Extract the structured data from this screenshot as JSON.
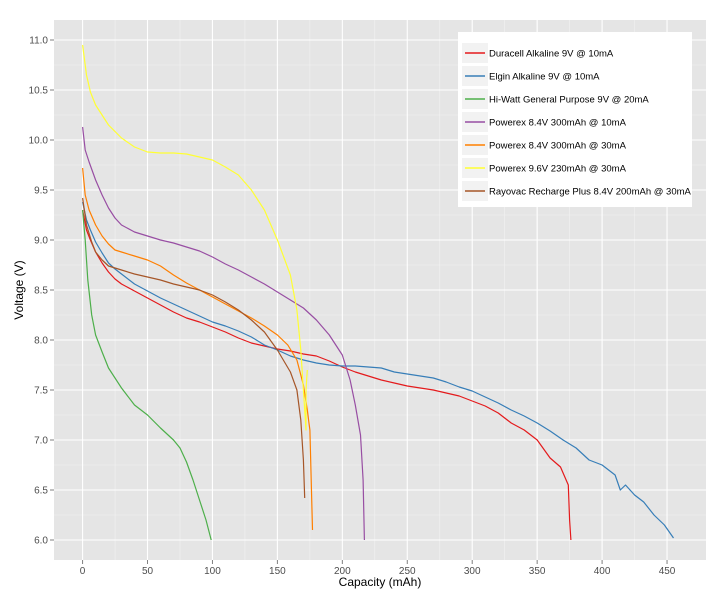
{
  "chart_data": {
    "type": "line",
    "title": "",
    "xlabel": "Capacity (mAh)",
    "ylabel": "Voltage (V)",
    "xlim": [
      -22,
      480
    ],
    "ylim": [
      5.8,
      11.2
    ],
    "xticks": [
      0,
      50,
      100,
      150,
      200,
      250,
      300,
      350,
      400,
      450
    ],
    "yticks": [
      6.0,
      6.5,
      7.0,
      7.5,
      8.0,
      8.5,
      9.0,
      9.5,
      10.0,
      10.5,
      11.0
    ],
    "ytick_labels": [
      "6.0",
      "6.5",
      "7.0",
      "7.5",
      "8.0",
      "8.5",
      "9.0",
      "9.5",
      "10.0",
      "10.5",
      "11.0"
    ],
    "grid": true,
    "legend_position": "top-right",
    "background": "#e5e5e5",
    "series": [
      {
        "name": "Duracell Alkaline 9V @ 10mA",
        "color": "#e41a1c",
        "points": [
          [
            0,
            9.3
          ],
          [
            3,
            9.1
          ],
          [
            6,
            9.0
          ],
          [
            10,
            8.88
          ],
          [
            15,
            8.77
          ],
          [
            20,
            8.68
          ],
          [
            25,
            8.61
          ],
          [
            30,
            8.56
          ],
          [
            40,
            8.49
          ],
          [
            50,
            8.42
          ],
          [
            60,
            8.35
          ],
          [
            70,
            8.28
          ],
          [
            80,
            8.22
          ],
          [
            90,
            8.18
          ],
          [
            100,
            8.13
          ],
          [
            110,
            8.08
          ],
          [
            120,
            8.02
          ],
          [
            130,
            7.97
          ],
          [
            140,
            7.94
          ],
          [
            150,
            7.91
          ],
          [
            160,
            7.89
          ],
          [
            170,
            7.86
          ],
          [
            180,
            7.84
          ],
          [
            190,
            7.79
          ],
          [
            200,
            7.73
          ],
          [
            210,
            7.68
          ],
          [
            220,
            7.64
          ],
          [
            230,
            7.6
          ],
          [
            240,
            7.57
          ],
          [
            250,
            7.54
          ],
          [
            260,
            7.52
          ],
          [
            270,
            7.5
          ],
          [
            280,
            7.47
          ],
          [
            290,
            7.44
          ],
          [
            300,
            7.39
          ],
          [
            310,
            7.34
          ],
          [
            320,
            7.27
          ],
          [
            330,
            7.17
          ],
          [
            340,
            7.1
          ],
          [
            350,
            7.0
          ],
          [
            360,
            6.82
          ],
          [
            368,
            6.73
          ],
          [
            374,
            6.55
          ],
          [
            375,
            6.2
          ],
          [
            376,
            6.0
          ]
        ]
      },
      {
        "name": "Elgin Alkaline 9V @ 10mA",
        "color": "#377eb8",
        "points": [
          [
            0,
            9.38
          ],
          [
            3,
            9.2
          ],
          [
            6,
            9.1
          ],
          [
            10,
            8.98
          ],
          [
            15,
            8.87
          ],
          [
            20,
            8.77
          ],
          [
            25,
            8.71
          ],
          [
            30,
            8.66
          ],
          [
            40,
            8.56
          ],
          [
            50,
            8.49
          ],
          [
            60,
            8.42
          ],
          [
            70,
            8.36
          ],
          [
            80,
            8.3
          ],
          [
            90,
            8.24
          ],
          [
            100,
            8.18
          ],
          [
            110,
            8.14
          ],
          [
            120,
            8.09
          ],
          [
            130,
            8.03
          ],
          [
            140,
            7.95
          ],
          [
            150,
            7.9
          ],
          [
            160,
            7.84
          ],
          [
            170,
            7.8
          ],
          [
            180,
            7.77
          ],
          [
            190,
            7.75
          ],
          [
            200,
            7.74
          ],
          [
            210,
            7.74
          ],
          [
            220,
            7.73
          ],
          [
            230,
            7.72
          ],
          [
            240,
            7.68
          ],
          [
            250,
            7.66
          ],
          [
            260,
            7.64
          ],
          [
            270,
            7.62
          ],
          [
            280,
            7.58
          ],
          [
            290,
            7.53
          ],
          [
            300,
            7.49
          ],
          [
            310,
            7.43
          ],
          [
            320,
            7.37
          ],
          [
            330,
            7.3
          ],
          [
            340,
            7.24
          ],
          [
            350,
            7.17
          ],
          [
            360,
            7.09
          ],
          [
            370,
            7.0
          ],
          [
            380,
            6.92
          ],
          [
            390,
            6.8
          ],
          [
            400,
            6.75
          ],
          [
            410,
            6.65
          ],
          [
            414,
            6.5
          ],
          [
            418,
            6.55
          ],
          [
            425,
            6.45
          ],
          [
            432,
            6.38
          ],
          [
            440,
            6.25
          ],
          [
            448,
            6.15
          ],
          [
            455,
            6.02
          ]
        ]
      },
      {
        "name": "Hi-Watt General Purpose 9V @ 20mA",
        "color": "#4daf4a",
        "points": [
          [
            0,
            9.3
          ],
          [
            2,
            9.0
          ],
          [
            4,
            8.6
          ],
          [
            7,
            8.25
          ],
          [
            10,
            8.05
          ],
          [
            15,
            7.88
          ],
          [
            20,
            7.72
          ],
          [
            30,
            7.52
          ],
          [
            40,
            7.35
          ],
          [
            50,
            7.25
          ],
          [
            60,
            7.12
          ],
          [
            70,
            7.0
          ],
          [
            75,
            6.92
          ],
          [
            80,
            6.78
          ],
          [
            85,
            6.6
          ],
          [
            90,
            6.4
          ],
          [
            95,
            6.2
          ],
          [
            99,
            6.0
          ]
        ]
      },
      {
        "name": "Powerex 8.4V 300mAh @ 10mA",
        "color": "#984ea3",
        "points": [
          [
            0,
            10.13
          ],
          [
            2,
            9.9
          ],
          [
            5,
            9.78
          ],
          [
            10,
            9.6
          ],
          [
            15,
            9.45
          ],
          [
            20,
            9.32
          ],
          [
            25,
            9.22
          ],
          [
            30,
            9.15
          ],
          [
            40,
            9.08
          ],
          [
            50,
            9.04
          ],
          [
            60,
            9.0
          ],
          [
            70,
            8.97
          ],
          [
            80,
            8.93
          ],
          [
            90,
            8.89
          ],
          [
            100,
            8.83
          ],
          [
            110,
            8.76
          ],
          [
            120,
            8.7
          ],
          [
            130,
            8.63
          ],
          [
            140,
            8.56
          ],
          [
            150,
            8.48
          ],
          [
            160,
            8.4
          ],
          [
            170,
            8.32
          ],
          [
            180,
            8.2
          ],
          [
            190,
            8.05
          ],
          [
            200,
            7.85
          ],
          [
            206,
            7.6
          ],
          [
            210,
            7.35
          ],
          [
            214,
            7.05
          ],
          [
            216,
            6.6
          ],
          [
            217,
            6.0
          ]
        ]
      },
      {
        "name": "Powerex 8.4V 300mAh @ 30mA",
        "color": "#ff7f00",
        "points": [
          [
            0,
            9.72
          ],
          [
            2,
            9.45
          ],
          [
            5,
            9.3
          ],
          [
            10,
            9.15
          ],
          [
            15,
            9.04
          ],
          [
            20,
            8.96
          ],
          [
            25,
            8.9
          ],
          [
            30,
            8.88
          ],
          [
            40,
            8.84
          ],
          [
            50,
            8.8
          ],
          [
            60,
            8.74
          ],
          [
            70,
            8.65
          ],
          [
            80,
            8.57
          ],
          [
            90,
            8.5
          ],
          [
            100,
            8.43
          ],
          [
            110,
            8.36
          ],
          [
            120,
            8.29
          ],
          [
            130,
            8.22
          ],
          [
            140,
            8.14
          ],
          [
            150,
            8.05
          ],
          [
            158,
            7.95
          ],
          [
            165,
            7.8
          ],
          [
            170,
            7.55
          ],
          [
            173,
            7.3
          ],
          [
            175,
            7.1
          ],
          [
            176,
            6.6
          ],
          [
            177,
            6.1
          ]
        ]
      },
      {
        "name": "Powerex 9.6V 230mAh @ 30mA",
        "color": "#ffff33",
        "points": [
          [
            0,
            10.95
          ],
          [
            3,
            10.65
          ],
          [
            6,
            10.48
          ],
          [
            10,
            10.35
          ],
          [
            20,
            10.15
          ],
          [
            30,
            10.02
          ],
          [
            40,
            9.93
          ],
          [
            50,
            9.88
          ],
          [
            60,
            9.87
          ],
          [
            70,
            9.87
          ],
          [
            80,
            9.86
          ],
          [
            90,
            9.83
          ],
          [
            100,
            9.8
          ],
          [
            110,
            9.73
          ],
          [
            120,
            9.65
          ],
          [
            130,
            9.5
          ],
          [
            140,
            9.3
          ],
          [
            150,
            9.0
          ],
          [
            160,
            8.65
          ],
          [
            165,
            8.3
          ],
          [
            168,
            7.9
          ],
          [
            170,
            7.5
          ],
          [
            171,
            7.3
          ],
          [
            172,
            7.1
          ],
          [
            172,
            7.5
          ],
          [
            173,
            7.7
          ]
        ]
      },
      {
        "name": "Rayovac Recharge Plus 8.4V 200mAh @ 30mA",
        "color": "#a65628",
        "points": [
          [
            0,
            9.42
          ],
          [
            3,
            9.15
          ],
          [
            7,
            8.98
          ],
          [
            10,
            8.88
          ],
          [
            15,
            8.8
          ],
          [
            20,
            8.74
          ],
          [
            30,
            8.7
          ],
          [
            40,
            8.66
          ],
          [
            50,
            8.63
          ],
          [
            60,
            8.6
          ],
          [
            70,
            8.56
          ],
          [
            80,
            8.53
          ],
          [
            90,
            8.5
          ],
          [
            100,
            8.45
          ],
          [
            110,
            8.38
          ],
          [
            120,
            8.3
          ],
          [
            130,
            8.2
          ],
          [
            140,
            8.08
          ],
          [
            150,
            7.9
          ],
          [
            160,
            7.68
          ],
          [
            165,
            7.5
          ],
          [
            168,
            7.2
          ],
          [
            170,
            6.8
          ],
          [
            171,
            6.42
          ]
        ]
      }
    ]
  }
}
